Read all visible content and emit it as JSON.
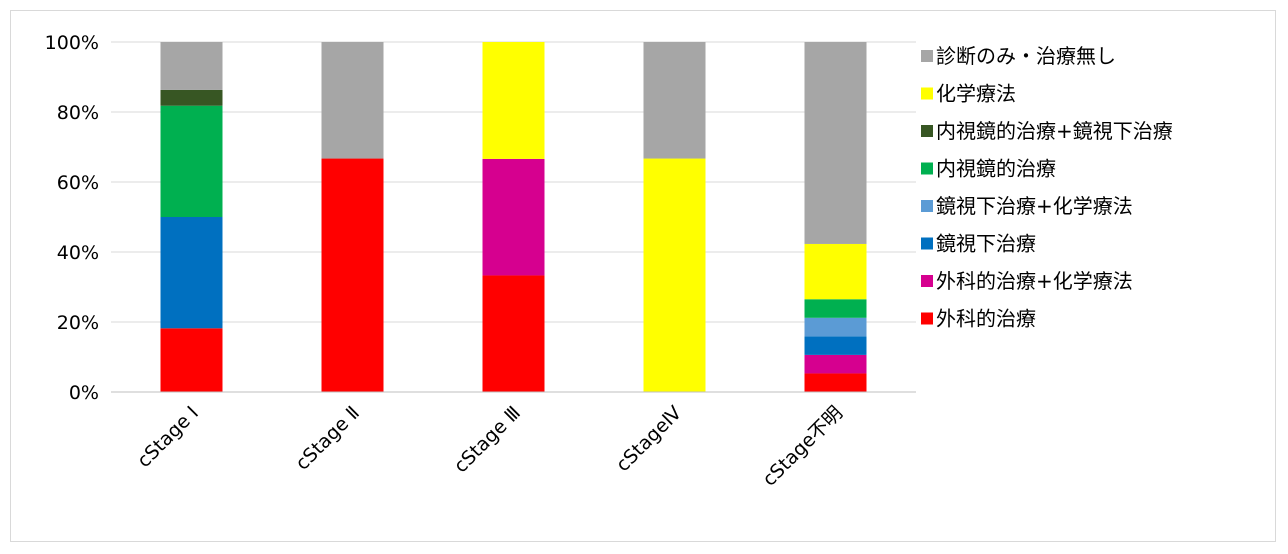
{
  "chart_data": {
    "type": "bar",
    "stacked": true,
    "categories": [
      "cStage Ⅰ",
      "cStage Ⅱ",
      "cStage Ⅲ",
      "cStageⅣ",
      "cStage不明"
    ],
    "ylim": [
      0,
      100
    ],
    "yticks": [
      "0%",
      "20%",
      "40%",
      "60%",
      "80%",
      "100%"
    ],
    "ytick_values": [
      0,
      20,
      40,
      60,
      80,
      100
    ],
    "grid": true,
    "legend_position": "right",
    "series": [
      {
        "name": "外科的治療",
        "color": "#ff0000",
        "values": [
          18.2,
          66.7,
          33.3,
          0,
          5.3
        ]
      },
      {
        "name": "外科的治療+化学療法",
        "color": "#d6008f",
        "values": [
          0,
          0,
          33.3,
          0,
          5.3
        ]
      },
      {
        "name": "鏡視下治療",
        "color": "#0070c0",
        "values": [
          31.8,
          0,
          0,
          0,
          5.3
        ]
      },
      {
        "name": "鏡視下治療+化学療法",
        "color": "#5b9bd5",
        "values": [
          0,
          0,
          0,
          0,
          5.3
        ]
      },
      {
        "name": "内視鏡的治療",
        "color": "#00b050",
        "values": [
          31.8,
          0,
          0,
          0,
          5.3
        ]
      },
      {
        "name": "内視鏡的治療+鏡視下治療",
        "color": "#375623",
        "values": [
          4.5,
          0,
          0,
          0,
          0
        ]
      },
      {
        "name": "化学療法",
        "color": "#ffff00",
        "values": [
          0,
          0,
          33.4,
          66.7,
          15.8
        ]
      },
      {
        "name": "診断のみ・治療無し",
        "color": "#a6a6a6",
        "values": [
          13.7,
          33.3,
          0,
          33.3,
          57.7
        ]
      }
    ]
  }
}
